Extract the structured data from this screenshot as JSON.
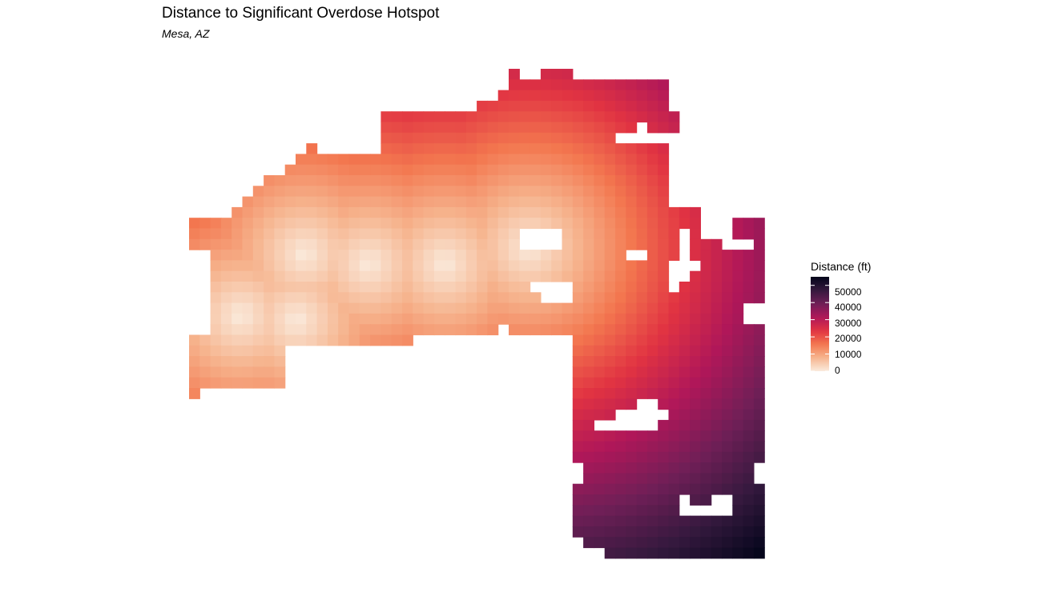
{
  "chart_data": {
    "type": "heatmap",
    "title": "Distance to Significant Overdose Hotspot",
    "subtitle": "Mesa, AZ",
    "legend": {
      "title": "Distance (ft)",
      "ticks": [
        0,
        10000,
        20000,
        30000,
        40000,
        50000
      ],
      "range": [
        0,
        55000
      ],
      "placement": "right"
    },
    "colorscale": [
      "#faebdd",
      "#f6b48e",
      "#f3774f",
      "#e13342",
      "#b01759",
      "#701f57",
      "#35193e",
      "#03051a"
    ],
    "grid": {
      "cols": 54,
      "rows": 46,
      "value_max": 55000,
      "hotspots": [
        [
          12,
          17
        ],
        [
          22,
          17
        ],
        [
          28,
          17
        ],
        [
          37,
          18
        ]
      ],
      "note": "distance surface computed from hotspot cells; mask encoded as row ranges"
    }
  }
}
